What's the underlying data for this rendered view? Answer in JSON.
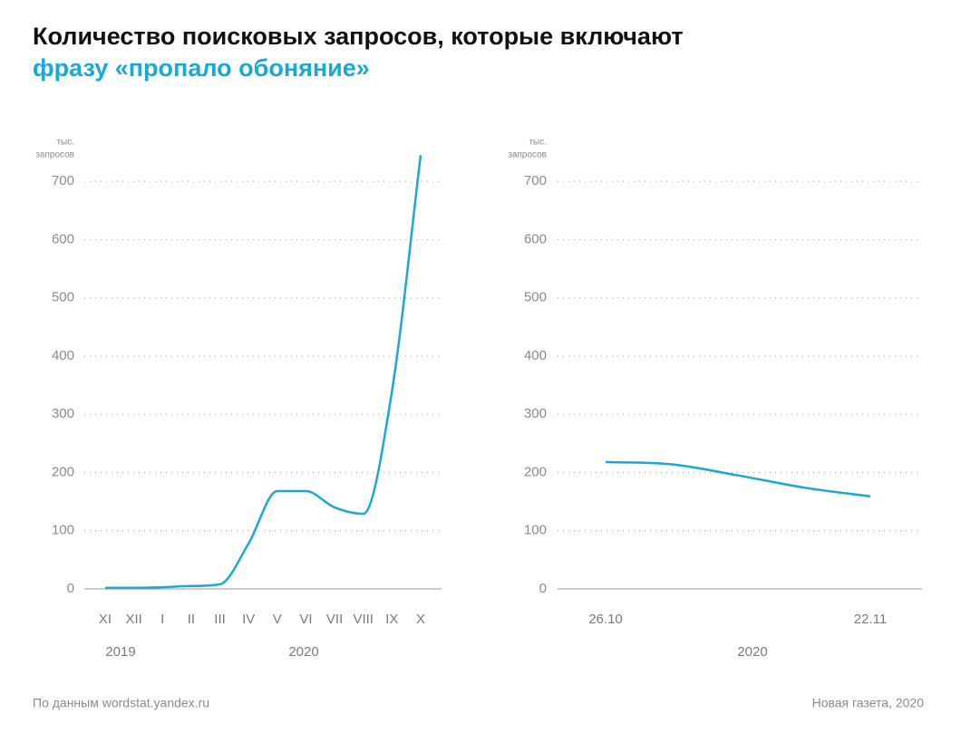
{
  "title": "Количество поисковых запросов, которые включают",
  "subtitle": "фразу «пропало обоняние»",
  "source": "По данным wordstat.yandex.ru",
  "credit": "Новая газета, 2020",
  "chart_data": [
    {
      "type": "line",
      "ylabel": [
        "тыс.",
        "запросов"
      ],
      "categories": [
        "XI",
        "XII",
        "I",
        "II",
        "III",
        "IV",
        "V",
        "VI",
        "VII",
        "VIII",
        "IX",
        "X"
      ],
      "years": [
        "2019",
        "2020"
      ],
      "values": [
        2,
        2,
        3,
        5,
        8,
        78,
        168,
        168,
        140,
        129,
        340,
        745
      ],
      "color": "#19a9d6",
      "ylim": [
        0,
        750
      ],
      "yticks": [
        0,
        100,
        200,
        300,
        400,
        500,
        600,
        700
      ],
      "grid": true
    },
    {
      "type": "line",
      "ylabel": [
        "тыс.",
        "запросов"
      ],
      "categories": [
        "26.10",
        null,
        null,
        null,
        "22.11"
      ],
      "years": [
        "2020"
      ],
      "values": [
        218,
        214,
        195,
        174,
        159
      ],
      "color": "#19a9d6",
      "ylim": [
        0,
        750
      ],
      "yticks": [
        0,
        100,
        200,
        300,
        400,
        500,
        600,
        700
      ],
      "grid": true
    }
  ]
}
